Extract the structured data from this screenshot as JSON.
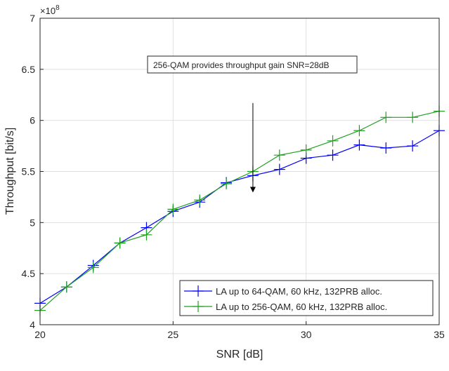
{
  "chart_data": {
    "type": "line",
    "title": "",
    "xlabel": "SNR [dB]",
    "ylabel": "Throughput [bit/s]",
    "xlim": [
      20,
      35
    ],
    "ylim": [
      400000000,
      700000000
    ],
    "y_exponent_label": "×10",
    "y_exponent_power": "8",
    "grid": true,
    "legend_position": "bottom-right",
    "x_ticks": [
      20,
      25,
      30,
      35
    ],
    "x_tick_labels": [
      "20",
      "25",
      "30",
      "35"
    ],
    "y_ticks": [
      400000000,
      450000000,
      500000000,
      550000000,
      600000000,
      650000000,
      700000000
    ],
    "y_tick_labels": [
      "4",
      "4.5",
      "5",
      "5.5",
      "6",
      "6.5",
      "7"
    ],
    "x": [
      20,
      21,
      22,
      23,
      24,
      25,
      26,
      27,
      28,
      29,
      30,
      31,
      32,
      33,
      34,
      35
    ],
    "series": [
      {
        "name": "LA up to 64-QAM, 60 kHz, 132PRB alloc.",
        "color": "#0000ff",
        "values": [
          421000000,
          437000000,
          458000000,
          480000000,
          495000000,
          511000000,
          520000000,
          539000000,
          546000000,
          552000000,
          563000000,
          566000000,
          576000000,
          573000000,
          575000000,
          590000000
        ]
      },
      {
        "name": "LA up to 256-QAM, 60 kHz, 132PRB alloc.",
        "color": "#1ea01e",
        "values": [
          414000000,
          437000000,
          456000000,
          480000000,
          488000000,
          513000000,
          522000000,
          538000000,
          550000000,
          566000000,
          571000000,
          580000000,
          590000000,
          603000000,
          603000000,
          609000000
        ]
      }
    ],
    "annotation": {
      "text": "256-QAM provides throughput gain SNR=28dB",
      "arrow_tip_x": 28,
      "arrow_tip_y": 530000000,
      "arrow_tail_x": 28,
      "arrow_tail_y": 617000000
    }
  }
}
